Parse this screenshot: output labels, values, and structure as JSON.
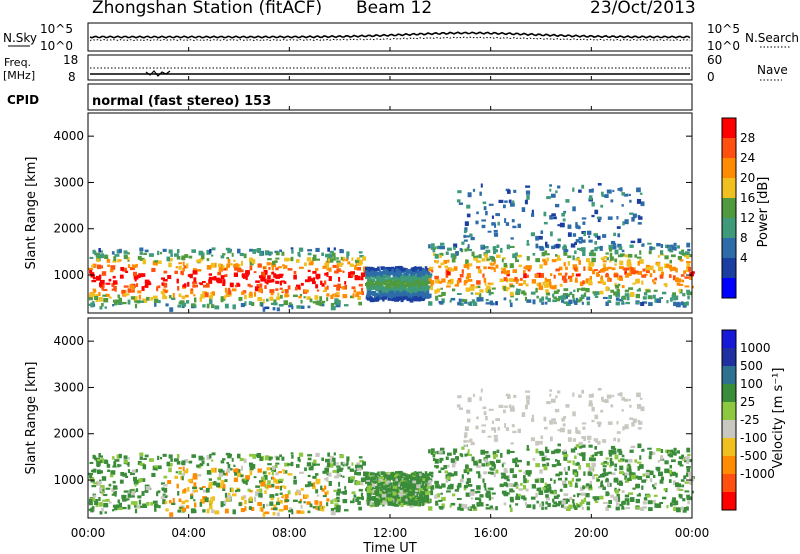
{
  "header": {
    "station": "Zhongshan Station (fitACF)",
    "beam": "Beam 12",
    "date": "23/Oct/2013"
  },
  "top_panel": {
    "left_label": "N.Sky",
    "left_ticks": [
      "10^5",
      "10^0"
    ],
    "right_label": "N.Search",
    "right_ticks": [
      "10^5",
      "10^0"
    ]
  },
  "freq_panel": {
    "left_label_1": "Freq.",
    "left_label_2": "[MHz]",
    "left_ticks": [
      "18",
      "8"
    ],
    "right_label": "Nave",
    "right_ticks": [
      "60",
      "0"
    ]
  },
  "cpid": {
    "label": "CPID",
    "text": "normal (fast stereo) 153"
  },
  "colors": {
    "power": [
      "#0000ff",
      "#1a3fa0",
      "#2d6ca8",
      "#3e9a78",
      "#4f9a3e",
      "#f0c020",
      "#ff8c00",
      "#ff5010",
      "#ff0000"
    ],
    "velocity": [
      "#ff0000",
      "#ff5010",
      "#ff8c00",
      "#f0c020",
      "#c8c8c0",
      "#8cc840",
      "#3a8c3a",
      "#2e7090",
      "#2030a0",
      "#1818d8"
    ]
  },
  "chart_data": [
    {
      "type": "heatmap",
      "name": "power",
      "ylabel": "Slant Range [km]",
      "xlabel": "Time UT",
      "x_ticks": [
        "00:00",
        "04:00",
        "08:00",
        "12:00",
        "16:00",
        "20:00",
        "00:00"
      ],
      "y_ticks": [
        1000,
        2000,
        3000,
        4000
      ],
      "ylim": [
        180,
        4500
      ],
      "xlim_hours": [
        0,
        24
      ],
      "colorbar": {
        "label": "Power [dB]",
        "ticks": [
          4,
          8,
          12,
          16,
          20,
          24,
          28
        ],
        "range": [
          0,
          32
        ]
      },
      "echo_regions": [
        {
          "t_start": 0.0,
          "t_end": 11.0,
          "r_low": 300,
          "r_high": 1600,
          "level": "strong"
        },
        {
          "t_start": 11.0,
          "t_end": 13.5,
          "r_low": 500,
          "r_high": 1200,
          "level": "weak"
        },
        {
          "t_start": 13.5,
          "t_end": 24.0,
          "r_low": 400,
          "r_high": 1700,
          "level": "medium"
        },
        {
          "t_start": 14.5,
          "t_end": 22.0,
          "r_low": 1700,
          "r_high": 3000,
          "level": "sparse"
        }
      ]
    },
    {
      "type": "heatmap",
      "name": "velocity",
      "ylabel": "Slant Range [km]",
      "xlabel": "Time UT",
      "x_ticks": [
        "00:00",
        "04:00",
        "08:00",
        "12:00",
        "16:00",
        "20:00",
        "00:00"
      ],
      "y_ticks": [
        1000,
        2000,
        3000,
        4000
      ],
      "ylim": [
        180,
        4500
      ],
      "xlim_hours": [
        0,
        24
      ],
      "colorbar": {
        "label": "Velocity [m s⁻¹]",
        "ticks": [
          "1000",
          "500",
          "100",
          "25",
          "-25",
          "-100",
          "-500",
          "-1000"
        ]
      }
    }
  ]
}
